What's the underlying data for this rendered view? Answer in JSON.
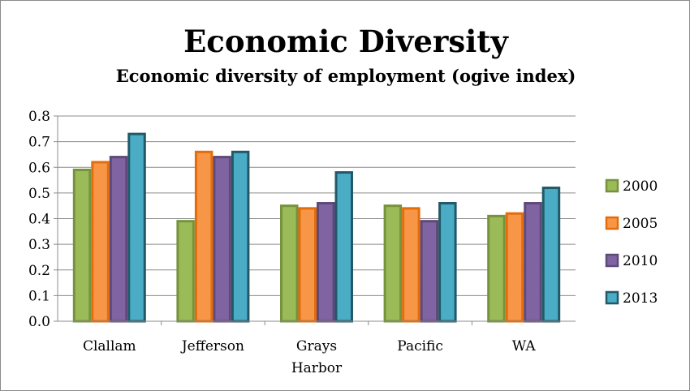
{
  "chart_data": {
    "type": "bar",
    "title": "Economic Diversity",
    "subtitle": "Economic diversity of employment (ogive index)",
    "categories": [
      [
        "Clallam"
      ],
      [
        "Jefferson"
      ],
      [
        "Grays",
        "Harbor"
      ],
      [
        "Pacific"
      ],
      [
        "WA"
      ]
    ],
    "series": [
      {
        "name": "2000",
        "color": "#9BBB59",
        "edge": "#76923C",
        "values": [
          0.59,
          0.39,
          0.45,
          0.45,
          0.41
        ]
      },
      {
        "name": "2005",
        "color": "#F79646",
        "edge": "#E46C0A",
        "values": [
          0.62,
          0.66,
          0.44,
          0.44,
          0.42
        ]
      },
      {
        "name": "2010",
        "color": "#8064A2",
        "edge": "#5F497A",
        "values": [
          0.64,
          0.64,
          0.46,
          0.39,
          0.46
        ]
      },
      {
        "name": "2013",
        "color": "#4BACC6",
        "edge": "#215968",
        "values": [
          0.73,
          0.66,
          0.58,
          0.46,
          0.52
        ]
      }
    ],
    "ylim": [
      0,
      0.8
    ],
    "yticks": [
      "0.0",
      "0.1",
      "0.2",
      "0.3",
      "0.4",
      "0.5",
      "0.6",
      "0.7",
      "0.8"
    ],
    "grid": true,
    "legend_position": "right"
  }
}
